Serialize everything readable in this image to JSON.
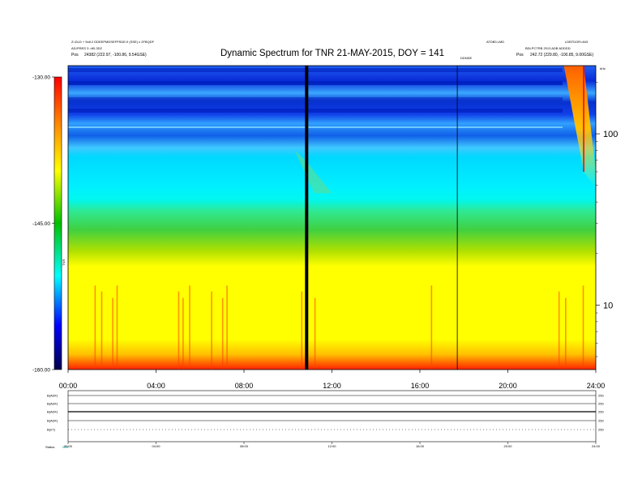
{
  "header": {
    "title": "Dynamic Spectrum for TNR 21-MAY-2015, DOY = 141",
    "left_line1": "Z=DLD + 5x8.2 DDEEPMDSEFPSDE:0 (SSE) x 2FBQDF",
    "left_line2": "ADJFBSS 3 =80.3DZ",
    "left_line3_label": "Pos",
    "left_line3_value": "24382 (222.97, -100.86, 9.54GSE)",
    "right_top_a": "ATDB3.LMD",
    "right_top_b": "LDBTDOR=843",
    "right_line2": "BDLPCTRB 2013 ADB ADDDD",
    "right_line3_label": "Pos",
    "right_line3_value": "242.72 (229.80, -100.85, 9.00GSE)",
    "corner_label": "kHz",
    "marker_label": "DDNDE"
  },
  "colorbar": {
    "label": "TNR",
    "ticks": [
      "-130.00",
      "-145.00",
      "-160.00"
    ],
    "colors": [
      "#ff0000",
      "#ff8000",
      "#ffff00",
      "#00c000",
      "#00ffff",
      "#0000ff",
      "#00004b"
    ]
  },
  "chart_data": {
    "type": "heatmap",
    "title": "Dynamic Spectrum for TNR 21-MAY-2015, DOY = 141",
    "x_ticks": [
      "00:00",
      "04:00",
      "08:00",
      "12:00",
      "16:00",
      "20:00",
      "24:00"
    ],
    "x_range_hours": [
      0,
      24
    ],
    "y_ticks": [
      "100",
      "10"
    ],
    "y_tick_values_khz": [
      100,
      10
    ],
    "y_scale": "log",
    "y_range_khz": [
      4.2,
      250
    ],
    "z_range_db": [
      -160,
      -130
    ],
    "colormap": "rainbow (blue = low, red = high)",
    "vertical_markers_hours": [
      {
        "t": 10.85,
        "style": "thick"
      },
      {
        "t": 17.7,
        "style": "thin"
      }
    ],
    "bands": [
      {
        "f_from_khz": 250,
        "f_to_khz": 140,
        "level_db": -157,
        "color": "#1040e0"
      },
      {
        "f_from_khz": 140,
        "f_to_khz": 100,
        "level_db": -154,
        "color": "#1e7cf5"
      },
      {
        "f_from_khz": 100,
        "f_to_khz": 40,
        "level_db": -150,
        "color": "#00e8ff"
      },
      {
        "f_from_khz": 40,
        "f_to_khz": 20,
        "level_db": -145,
        "color": "#40d060"
      },
      {
        "f_from_khz": 20,
        "f_to_khz": 5,
        "level_db": -138,
        "color": "#ffff00"
      },
      {
        "f_from_khz": 5,
        "f_to_khz": 4.2,
        "level_db": -133,
        "color": "#ff3000"
      }
    ],
    "bursts": [
      {
        "t_start": 22.55,
        "t_end": 23.45,
        "f_top_khz": 250,
        "f_bottom_khz": 60,
        "note": "type III-like drift"
      }
    ]
  },
  "bottom_panel": {
    "rows": [
      {
        "label": "B(ADF)",
        "right": "250"
      },
      {
        "label": "B(ADF)",
        "right": "250"
      },
      {
        "label": "B(ADF)",
        "right": "250"
      },
      {
        "label": "B(ADF)",
        "right": "250"
      },
      {
        "label": "B(nT)",
        "right": "250"
      }
    ],
    "x_ticks": [
      "00:00",
      "04:00",
      "08:00",
      "12:00",
      "16:00",
      "20:00",
      "24:00"
    ],
    "status_label": "Status",
    "status_value": "WW"
  }
}
